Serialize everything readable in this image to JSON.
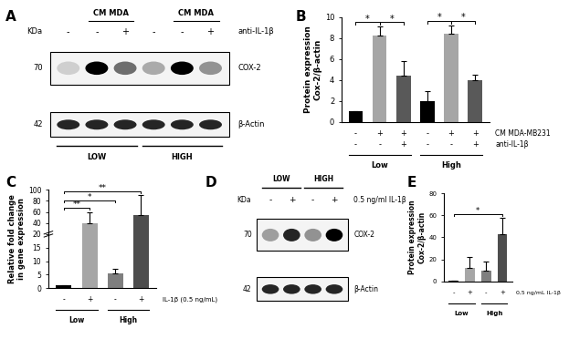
{
  "chart_data": [
    {
      "panel": "B",
      "type": "bar",
      "ylabel": "Protein expression\nCox-2/β-actin",
      "categories": [
        null,
        null,
        null,
        null,
        null,
        null
      ],
      "values": [
        1.0,
        8.2,
        4.4,
        2.0,
        8.4,
        4.0
      ],
      "errors": [
        0,
        0.9,
        1.4,
        0.9,
        0.8,
        0.5
      ],
      "colors": [
        "#000000",
        "#a6a6a6",
        "#595959",
        "#000000",
        "#a6a6a6",
        "#595959"
      ],
      "ylim": [
        0,
        10
      ],
      "yticks": [
        0,
        2,
        4,
        6,
        8,
        10
      ],
      "treatments": [
        {
          "name": "CM MDA-MB231",
          "values": [
            "-",
            "+",
            "+",
            "-",
            "+",
            "+"
          ]
        },
        {
          "name": "anti-IL-1β",
          "values": [
            "-",
            "-",
            "+",
            "-",
            "-",
            "+"
          ]
        }
      ],
      "groups": [
        "Low",
        "High"
      ],
      "significance": [
        {
          "from": 0,
          "to": 1,
          "label": "*"
        },
        {
          "from": 1,
          "to": 2,
          "label": "*"
        },
        {
          "from": 3,
          "to": 4,
          "label": "*"
        },
        {
          "from": 4,
          "to": 5,
          "label": "*"
        }
      ]
    },
    {
      "panel": "C",
      "type": "bar",
      "ylabel": "Relative fold change\nin gene expression",
      "categories": [
        null,
        null,
        null,
        null
      ],
      "values": [
        1.0,
        40,
        5.5,
        55
      ],
      "errors": [
        0,
        20,
        1.5,
        35
      ],
      "colors": [
        "#000000",
        "#a6a6a6",
        "#7f7f7f",
        "#4d4d4d"
      ],
      "ylim": [
        0,
        100
      ],
      "yticks": [
        0,
        5,
        10,
        15,
        20,
        40,
        60,
        80,
        100
      ],
      "treatments": [
        {
          "name": "IL-1β (0.5 ng/mL)",
          "values": [
            "-",
            "+",
            "-",
            "+"
          ]
        }
      ],
      "groups": [
        "Low",
        "High"
      ],
      "significance": [
        {
          "from": 0,
          "to": 1,
          "label": "**"
        },
        {
          "from": 0,
          "to": 2,
          "label": "*"
        },
        {
          "from": 0,
          "to": 3,
          "label": "**"
        }
      ]
    },
    {
      "panel": "E",
      "type": "bar",
      "ylabel": "Protein expression\nCox-2/β-actin",
      "categories": [
        null,
        null,
        null,
        null
      ],
      "values": [
        1.0,
        12,
        10,
        43
      ],
      "errors": [
        0,
        10,
        8,
        15
      ],
      "colors": [
        "#000000",
        "#a6a6a6",
        "#7f7f7f",
        "#4d4d4d"
      ],
      "ylim": [
        0,
        80
      ],
      "yticks": [
        0,
        20,
        40,
        60,
        80
      ],
      "treatments": [
        {
          "name": "0,5 ng/mL IL-1β",
          "values": [
            "-",
            "+",
            "-",
            "+"
          ]
        }
      ],
      "groups": [
        "Low",
        "High"
      ],
      "significance": [
        {
          "from": 0,
          "to": 3,
          "label": "*"
        }
      ]
    }
  ],
  "blots": [
    {
      "panel": "A",
      "kda_label": "KDa",
      "markers": [
        {
          "kda": 70,
          "label": "COX-2",
          "band_intensity": [
            0.15,
            1.0,
            0.55,
            0.3,
            1.0,
            0.4
          ]
        },
        {
          "kda": 42,
          "label": "β-Actin",
          "band_intensity": [
            0.85,
            0.85,
            0.85,
            0.85,
            0.85,
            0.85
          ]
        }
      ],
      "headers": [
        {
          "label": "CM MDA",
          "lanes": [
            1,
            2
          ]
        },
        {
          "label": "CM MDA",
          "lanes": [
            4,
            5
          ]
        }
      ],
      "treatments": [
        {
          "name": "anti-IL-1β",
          "values": [
            "-",
            "-",
            "+",
            "-",
            "-",
            "+"
          ]
        }
      ],
      "groups": [
        "LOW",
        "HIGH"
      ]
    },
    {
      "panel": "D",
      "kda_label": "KDa",
      "markers": [
        {
          "kda": 70,
          "label": "COX-2",
          "band_intensity": [
            0.35,
            0.85,
            0.4,
            1.0
          ]
        },
        {
          "kda": 42,
          "label": "β-Actin",
          "band_intensity": [
            0.85,
            0.85,
            0.85,
            0.85
          ]
        }
      ],
      "headers": [],
      "treatments": [
        {
          "name": "0.5 ng/ml IL-1β",
          "values": [
            "-",
            "+",
            "-",
            "+"
          ]
        }
      ],
      "groups": [
        "LOW",
        "HIGH"
      ]
    }
  ]
}
